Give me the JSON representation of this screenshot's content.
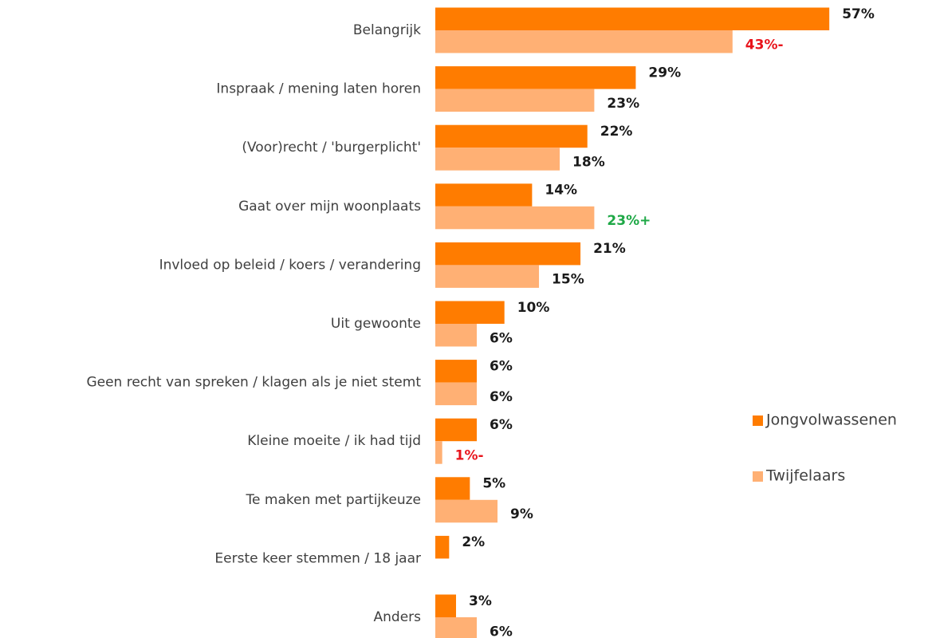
{
  "chart_data": {
    "type": "bar",
    "orientation": "horizontal",
    "categories": [
      "Belangrijk",
      "Inspraak / mening laten horen",
      "(Voor)recht / 'burgerplicht'",
      "Gaat over mijn woonplaats",
      "Invloed op beleid / koers / verandering",
      "Uit gewoonte",
      "Geen recht van spreken / klagen als je niet stemt",
      "Kleine moeite / ik had tijd",
      "Te maken met partijkeuze",
      "Eerste keer stemmen / 18 jaar",
      "Anders"
    ],
    "series": [
      {
        "name": "Jongvolwassenen",
        "color": "#ff7c00",
        "values": [
          57,
          29,
          22,
          14,
          21,
          10,
          6,
          6,
          5,
          2,
          3
        ],
        "value_labels": [
          "57%",
          "29%",
          "22%",
          "14%",
          "21%",
          "10%",
          "6%",
          "6%",
          "5%",
          "2%",
          "3%"
        ]
      },
      {
        "name": "Twijfelaars",
        "color": "#ffb074",
        "values": [
          43,
          23,
          18,
          23,
          15,
          6,
          6,
          1,
          9,
          null,
          6
        ],
        "value_labels": [
          "43%-",
          "23%",
          "18%",
          "23%+",
          "15%",
          "6%",
          "6%",
          "1%-",
          "9%",
          null,
          "6%"
        ]
      }
    ],
    "legend": "right"
  }
}
